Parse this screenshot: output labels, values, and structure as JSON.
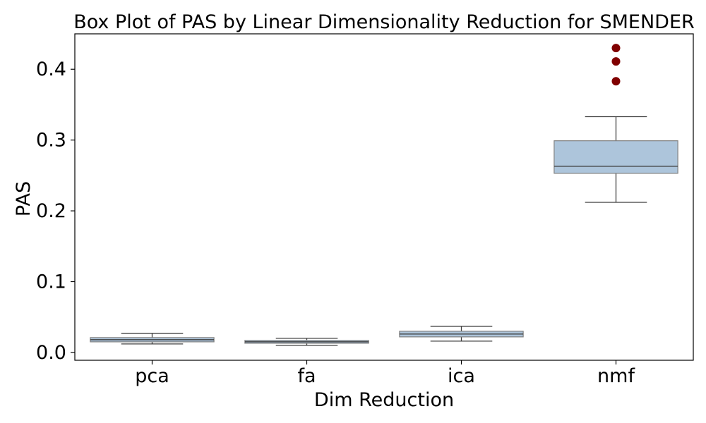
{
  "chart_data": {
    "type": "box",
    "title": "Box Plot of PAS by Linear Dimensionality Reduction for SMENDER",
    "xlabel": "Dim Reduction",
    "ylabel": "PAS",
    "ylim": [
      -0.011,
      0.45
    ],
    "yticks": [
      0.0,
      0.1,
      0.2,
      0.3,
      0.4
    ],
    "ytick_labels": [
      "0.0",
      "0.1",
      "0.2",
      "0.3",
      "0.4"
    ],
    "grid": false,
    "legend": "none",
    "box_color": "#adc5db",
    "box_edge_color": "#7f7f7f",
    "whisker_color": "#3f3f3f",
    "median_color": "#3f3f3f",
    "outlier_color": "#800000",
    "categories": [
      "pca",
      "fa",
      "ica",
      "nmf"
    ],
    "boxes": [
      {
        "category": "pca",
        "whisker_low": 0.012,
        "q1": 0.015,
        "median": 0.018,
        "q3": 0.021,
        "whisker_high": 0.027,
        "outliers": []
      },
      {
        "category": "fa",
        "whisker_low": 0.01,
        "q1": 0.013,
        "median": 0.015,
        "q3": 0.017,
        "whisker_high": 0.02,
        "outliers": []
      },
      {
        "category": "ica",
        "whisker_low": 0.016,
        "q1": 0.022,
        "median": 0.026,
        "q3": 0.03,
        "whisker_high": 0.037,
        "outliers": []
      },
      {
        "category": "nmf",
        "whisker_low": 0.212,
        "q1": 0.253,
        "median": 0.263,
        "q3": 0.299,
        "whisker_high": 0.333,
        "outliers": [
          0.383,
          0.411,
          0.43
        ]
      }
    ]
  }
}
